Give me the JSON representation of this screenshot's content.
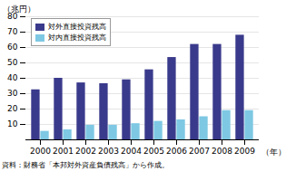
{
  "chart_data": {
    "type": "bar",
    "categories": [
      "2000",
      "2001",
      "2002",
      "2003",
      "2004",
      "2005",
      "2006",
      "2007",
      "2008",
      "2009"
    ],
    "series": [
      {
        "name": "対外直接投資残高",
        "color": "#3a3a8c",
        "values": [
          32.5,
          40.0,
          37.0,
          36.5,
          39.0,
          45.5,
          53.5,
          62.0,
          62.0,
          68.0
        ]
      },
      {
        "name": "対内直接投資残高",
        "color": "#7ec8e3",
        "values": [
          5.5,
          6.5,
          9.5,
          9.5,
          10.5,
          12.0,
          13.0,
          15.0,
          19.0,
          19.0
        ]
      }
    ],
    "ylabel": "（兆円）",
    "xlabel": "（年）",
    "caption": "資料：財務省「本邦対外資産負債残高」から作成。",
    "ylim": [
      0,
      80
    ],
    "yticks": [
      10,
      20,
      30,
      40,
      50,
      60,
      70,
      80
    ],
    "grid": true,
    "legend": "upper left"
  }
}
